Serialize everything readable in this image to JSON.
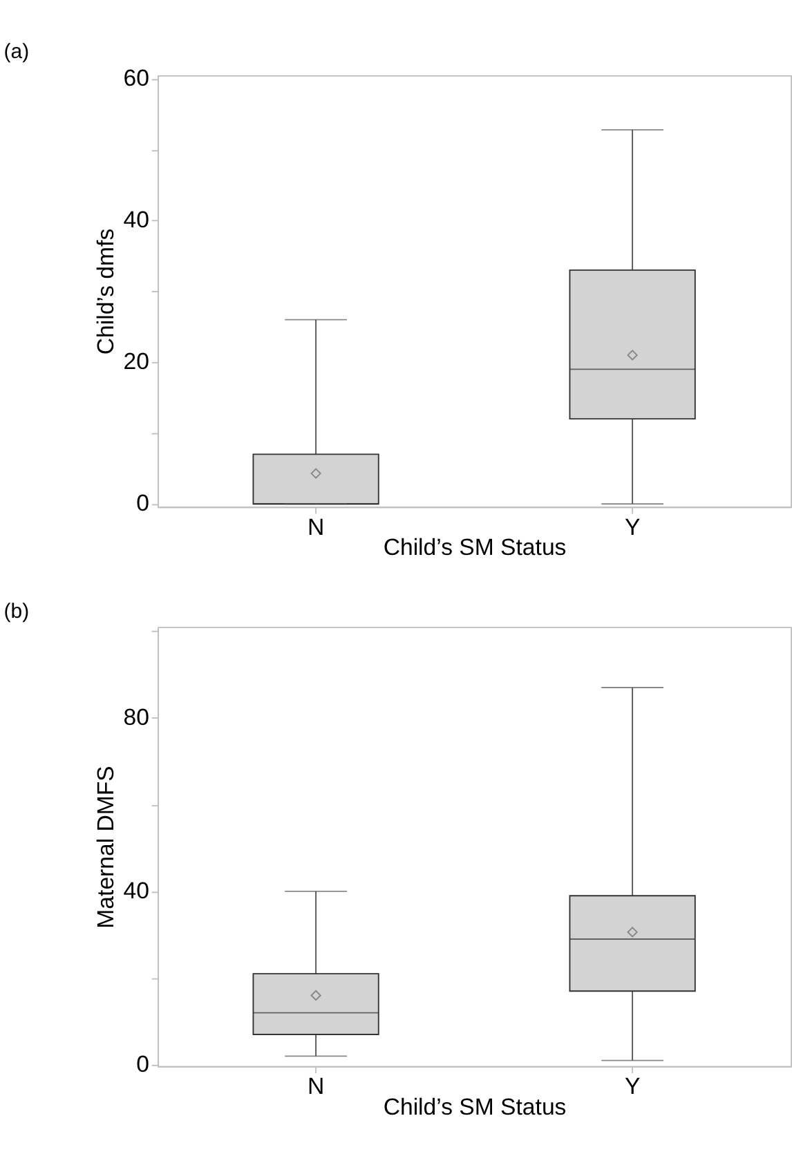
{
  "chart_data": [
    {
      "type": "box",
      "title": "(a)",
      "xlabel": "Child’s SM Status",
      "ylabel": "Child’s dmfs",
      "categories": [
        "N",
        "Y"
      ],
      "ylim": [
        -0.4,
        60.5
      ],
      "yticks": [
        0,
        {
          "value": 10,
          "label": null
        },
        20,
        {
          "value": 30,
          "label": null
        },
        40,
        {
          "value": 50,
          "label": null
        },
        60
      ],
      "grid": false,
      "marker": "diamond",
      "series": [
        {
          "color": "#d3d3d3",
          "boxes": [
            {
              "low": 0,
              "q1": 0,
              "median": 0,
              "q3": 7,
              "high": 26,
              "mean": 4.3
            },
            {
              "low": 0,
              "q1": 12,
              "median": 19,
              "q3": 33,
              "high": 52.8,
              "mean": 21
            }
          ]
        }
      ]
    },
    {
      "type": "box",
      "title": "(b)",
      "xlabel": "Child’s SM Status",
      "ylabel": "Maternal DMFS",
      "categories": [
        "N",
        "Y"
      ],
      "ylim": [
        -0.3,
        101
      ],
      "yticks": [
        0,
        {
          "value": 20,
          "label": null
        },
        40,
        {
          "value": 60,
          "label": null
        },
        80,
        {
          "value": 100,
          "label": null
        }
      ],
      "grid": false,
      "marker": "diamond",
      "series": [
        {
          "color": "#d3d3d3",
          "boxes": [
            {
              "low": 2,
              "q1": 7,
              "median": 12,
              "q3": 21,
              "high": 40,
              "mean": 16
            },
            {
              "low": 1,
              "q1": 17,
              "median": 29,
              "q3": 39,
              "high": 87,
              "mean": 30.6
            }
          ]
        }
      ]
    }
  ]
}
